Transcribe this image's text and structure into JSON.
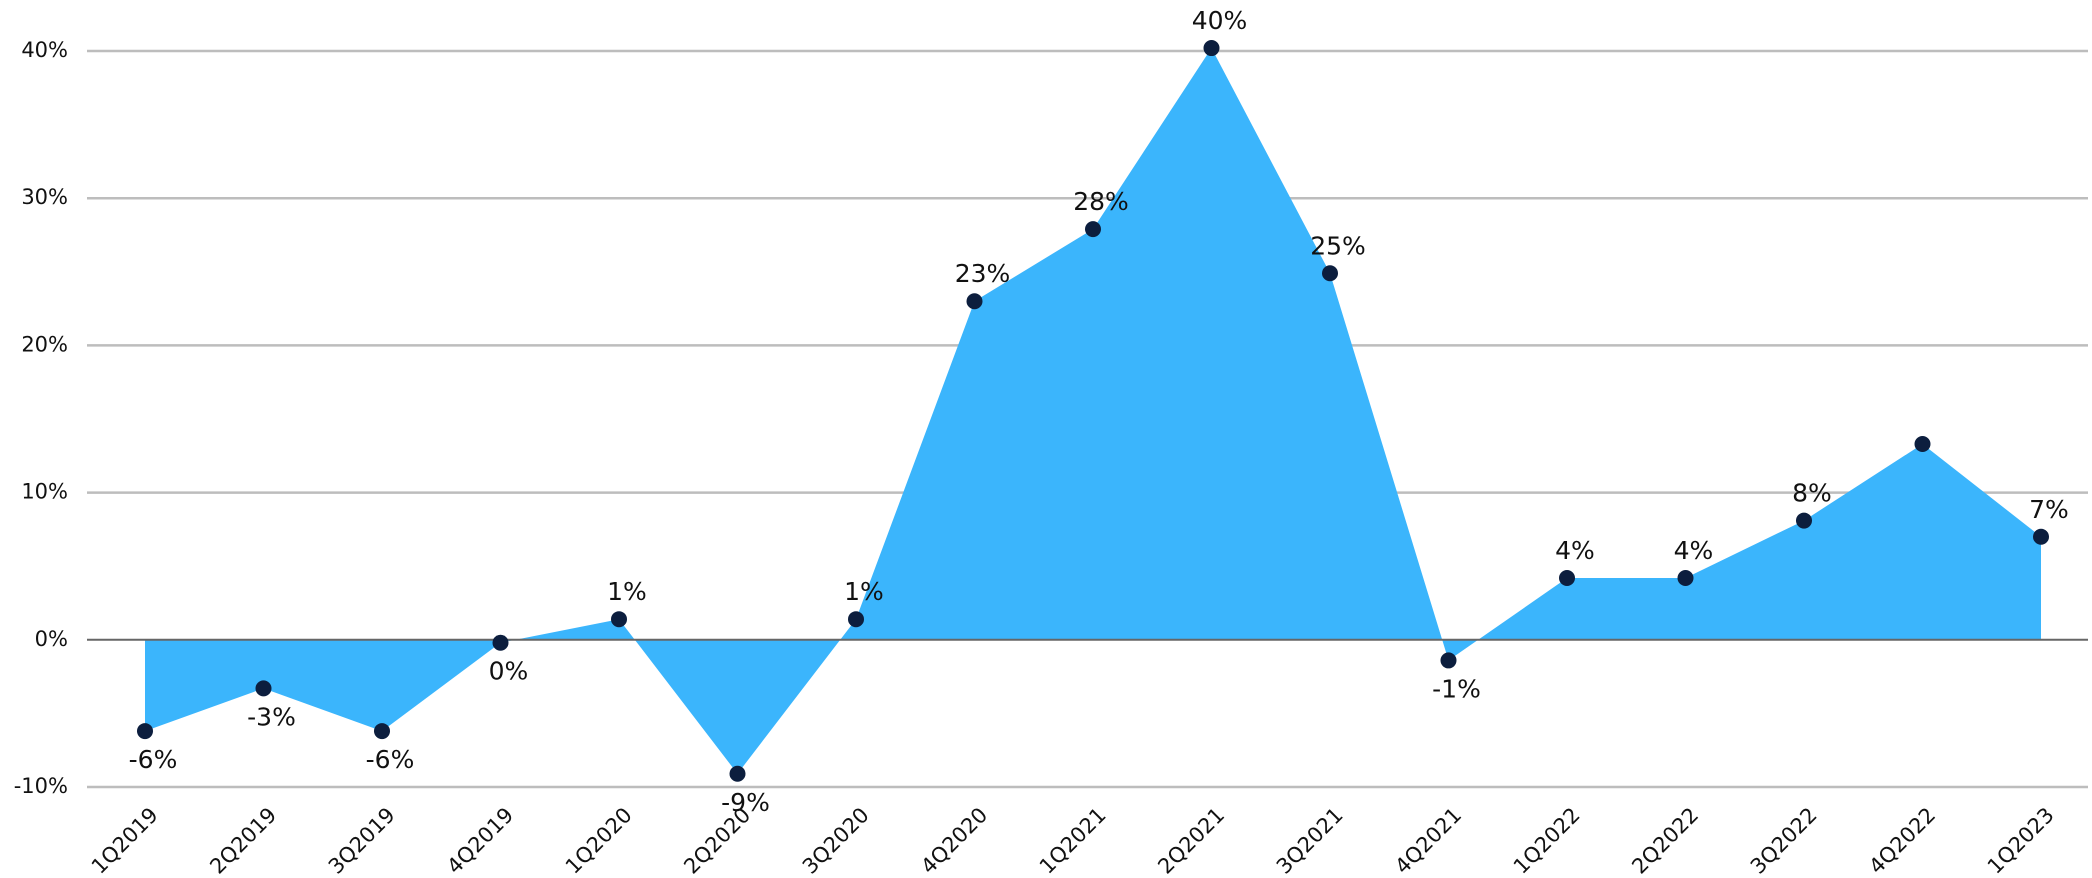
{
  "chart_data": {
    "type": "area",
    "categories": [
      "1Q2019",
      "2Q2019",
      "3Q2019",
      "4Q2019",
      "1Q2020",
      "2Q2020",
      "3Q2020",
      "4Q2020",
      "1Q2021",
      "2Q2021",
      "3Q2021",
      "4Q2021",
      "1Q2022",
      "2Q2022",
      "3Q2022",
      "4Q2022",
      "1Q2023"
    ],
    "values": [
      -6.2,
      -3.3,
      -6.2,
      -0.2,
      1.4,
      -9.1,
      1.4,
      23.0,
      27.9,
      40.2,
      24.9,
      -1.4,
      4.2,
      4.2,
      8.1,
      13.3,
      7.0
    ],
    "value_labels": [
      "-6%",
      "-3%",
      "-6%",
      "0%",
      "1%",
      "-9%",
      "1%",
      "23%",
      "28%",
      "40%",
      "25%",
      "-1%",
      "4%",
      "4%",
      "8%",
      null,
      "7%"
    ],
    "color": "#3bb5fc",
    "marker_color": "#0c1e3e",
    "ylim": [
      -10,
      40
    ],
    "yticks": [
      {
        "value": -10,
        "label": "-10%"
      },
      {
        "value": 0,
        "label": "0%"
      },
      {
        "value": 10,
        "label": "10%"
      },
      {
        "value": 20,
        "label": "20%"
      },
      {
        "value": 30,
        "label": "30%"
      },
      {
        "value": 40,
        "label": "40%"
      }
    ],
    "grid": true
  }
}
